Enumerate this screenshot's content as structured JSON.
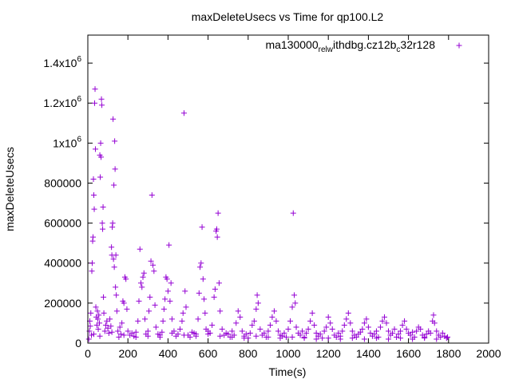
{
  "chart_data": {
    "type": "scatter",
    "title": "maxDeleteUsecs vs Time for qp100.L2",
    "xlabel": "Time(s)",
    "ylabel": "maxDeleteUsecs",
    "xlim": [
      0,
      2000
    ],
    "ylim": [
      0,
      1540000
    ],
    "x_ticks": [
      0,
      200,
      400,
      600,
      800,
      1000,
      1200,
      1400,
      1600,
      1800,
      2000
    ],
    "x_tick_labels": [
      "0",
      "200",
      "400",
      "600",
      "800",
      "1000",
      "1200",
      "1400",
      "1600",
      "1800",
      "2000"
    ],
    "y_ticks": [
      {
        "value": 0,
        "base": "0",
        "sup": ""
      },
      {
        "value": 200000,
        "base": "200000",
        "sup": ""
      },
      {
        "value": 400000,
        "base": "400000",
        "sup": ""
      },
      {
        "value": 600000,
        "base": "600000",
        "sup": ""
      },
      {
        "value": 800000,
        "base": "800000",
        "sup": ""
      },
      {
        "value": 1000000,
        "base": "1x10",
        "sup": "6"
      },
      {
        "value": 1200000,
        "base": "1.2x10",
        "sup": "6"
      },
      {
        "value": 1400000,
        "base": "1.4x10",
        "sup": "6"
      }
    ],
    "grid": false,
    "legend_position": "top-right",
    "series": [
      {
        "name": "ma130000_rel_withdbg.cz12b_c32r128",
        "legend_parts": [
          {
            "t": "ma130000",
            "s": ""
          },
          {
            "t": "rel",
            "s": "sub"
          },
          {
            "t": "w",
            "s": "sub"
          },
          {
            "t": "ithdbg.cz12b",
            "s": ""
          },
          {
            "t": "c",
            "s": "sub"
          },
          {
            "t": "32r128",
            "s": ""
          }
        ],
        "color": "#9400d3",
        "points": [
          [
            5,
            20000
          ],
          [
            8,
            60000
          ],
          [
            10,
            110000
          ],
          [
            12,
            85000
          ],
          [
            15,
            150000
          ],
          [
            18,
            40000
          ],
          [
            20,
            360000
          ],
          [
            22,
            400000
          ],
          [
            24,
            510000
          ],
          [
            26,
            530000
          ],
          [
            28,
            820000
          ],
          [
            30,
            740000
          ],
          [
            32,
            670000
          ],
          [
            34,
            1200000
          ],
          [
            36,
            1270000
          ],
          [
            38,
            970000
          ],
          [
            40,
            180000
          ],
          [
            42,
            130000
          ],
          [
            45,
            90000
          ],
          [
            48,
            160000
          ],
          [
            50,
            120000
          ],
          [
            52,
            70000
          ],
          [
            55,
            140000
          ],
          [
            58,
            100000
          ],
          [
            60,
            940000
          ],
          [
            62,
            830000
          ],
          [
            64,
            1000000
          ],
          [
            66,
            930000
          ],
          [
            68,
            1220000
          ],
          [
            70,
            1190000
          ],
          [
            72,
            600000
          ],
          [
            74,
            570000
          ],
          [
            76,
            680000
          ],
          [
            78,
            230000
          ],
          [
            80,
            150000
          ],
          [
            85,
            60000
          ],
          [
            90,
            90000
          ],
          [
            95,
            110000
          ],
          [
            100,
            75000
          ],
          [
            105,
            50000
          ],
          [
            110,
            120000
          ],
          [
            115,
            85000
          ],
          [
            118,
            480000
          ],
          [
            120,
            440000
          ],
          [
            122,
            580000
          ],
          [
            124,
            600000
          ],
          [
            126,
            1120000
          ],
          [
            128,
            420000
          ],
          [
            130,
            790000
          ],
          [
            132,
            380000
          ],
          [
            134,
            1010000
          ],
          [
            136,
            870000
          ],
          [
            138,
            280000
          ],
          [
            140,
            440000
          ],
          [
            142,
            240000
          ],
          [
            145,
            160000
          ],
          [
            150,
            60000
          ],
          [
            155,
            30000
          ],
          [
            160,
            80000
          ],
          [
            165,
            45000
          ],
          [
            170,
            100000
          ],
          [
            175,
            210000
          ],
          [
            180,
            200000
          ],
          [
            185,
            330000
          ],
          [
            190,
            320000
          ],
          [
            195,
            170000
          ],
          [
            200,
            60000
          ],
          [
            210,
            40000
          ],
          [
            220,
            50000
          ],
          [
            230,
            35000
          ],
          [
            240,
            55000
          ],
          [
            250,
            110000
          ],
          [
            255,
            210000
          ],
          [
            260,
            470000
          ],
          [
            265,
            300000
          ],
          [
            270,
            280000
          ],
          [
            275,
            330000
          ],
          [
            280,
            350000
          ],
          [
            285,
            120000
          ],
          [
            290,
            45000
          ],
          [
            300,
            60000
          ],
          [
            305,
            160000
          ],
          [
            310,
            230000
          ],
          [
            315,
            410000
          ],
          [
            320,
            740000
          ],
          [
            325,
            390000
          ],
          [
            330,
            360000
          ],
          [
            335,
            190000
          ],
          [
            340,
            80000
          ],
          [
            350,
            45000
          ],
          [
            360,
            40000
          ],
          [
            370,
            55000
          ],
          [
            375,
            110000
          ],
          [
            380,
            170000
          ],
          [
            385,
            220000
          ],
          [
            390,
            330000
          ],
          [
            395,
            320000
          ],
          [
            400,
            260000
          ],
          [
            405,
            490000
          ],
          [
            410,
            210000
          ],
          [
            415,
            300000
          ],
          [
            420,
            120000
          ],
          [
            430,
            60000
          ],
          [
            440,
            35000
          ],
          [
            450,
            45000
          ],
          [
            460,
            70000
          ],
          [
            470,
            110000
          ],
          [
            475,
            150000
          ],
          [
            480,
            1150000
          ],
          [
            485,
            260000
          ],
          [
            490,
            180000
          ],
          [
            500,
            40000
          ],
          [
            510,
            30000
          ],
          [
            520,
            55000
          ],
          [
            530,
            50000
          ],
          [
            540,
            45000
          ],
          [
            550,
            120000
          ],
          [
            555,
            250000
          ],
          [
            560,
            380000
          ],
          [
            565,
            400000
          ],
          [
            570,
            580000
          ],
          [
            575,
            320000
          ],
          [
            580,
            220000
          ],
          [
            585,
            150000
          ],
          [
            590,
            70000
          ],
          [
            600,
            60000
          ],
          [
            610,
            50000
          ],
          [
            620,
            90000
          ],
          [
            630,
            230000
          ],
          [
            635,
            270000
          ],
          [
            640,
            560000
          ],
          [
            643,
            570000
          ],
          [
            646,
            530000
          ],
          [
            650,
            650000
          ],
          [
            655,
            300000
          ],
          [
            660,
            160000
          ],
          [
            670,
            70000
          ],
          [
            680,
            40000
          ],
          [
            690,
            50000
          ],
          [
            700,
            45000
          ],
          [
            710,
            30000
          ],
          [
            720,
            60000
          ],
          [
            730,
            40000
          ],
          [
            740,
            100000
          ],
          [
            750,
            160000
          ],
          [
            760,
            130000
          ],
          [
            770,
            60000
          ],
          [
            780,
            35000
          ],
          [
            790,
            45000
          ],
          [
            800,
            25000
          ],
          [
            810,
            50000
          ],
          [
            820,
            90000
          ],
          [
            830,
            110000
          ],
          [
            840,
            170000
          ],
          [
            845,
            240000
          ],
          [
            850,
            200000
          ],
          [
            860,
            70000
          ],
          [
            870,
            40000
          ],
          [
            880,
            50000
          ],
          [
            890,
            30000
          ],
          [
            900,
            60000
          ],
          [
            910,
            90000
          ],
          [
            920,
            130000
          ],
          [
            930,
            160000
          ],
          [
            940,
            110000
          ],
          [
            950,
            60000
          ],
          [
            960,
            40000
          ],
          [
            970,
            35000
          ],
          [
            980,
            50000
          ],
          [
            990,
            30000
          ],
          [
            1000,
            70000
          ],
          [
            1010,
            110000
          ],
          [
            1020,
            180000
          ],
          [
            1025,
            650000
          ],
          [
            1030,
            240000
          ],
          [
            1035,
            200000
          ],
          [
            1040,
            80000
          ],
          [
            1050,
            50000
          ],
          [
            1060,
            40000
          ],
          [
            1070,
            60000
          ],
          [
            1080,
            30000
          ],
          [
            1090,
            50000
          ],
          [
            1100,
            70000
          ],
          [
            1110,
            110000
          ],
          [
            1120,
            150000
          ],
          [
            1130,
            90000
          ],
          [
            1140,
            50000
          ],
          [
            1150,
            35000
          ],
          [
            1160,
            45000
          ],
          [
            1170,
            25000
          ],
          [
            1180,
            60000
          ],
          [
            1190,
            80000
          ],
          [
            1200,
            130000
          ],
          [
            1210,
            100000
          ],
          [
            1220,
            70000
          ],
          [
            1230,
            40000
          ],
          [
            1240,
            30000
          ],
          [
            1250,
            50000
          ],
          [
            1260,
            35000
          ],
          [
            1270,
            60000
          ],
          [
            1280,
            90000
          ],
          [
            1290,
            120000
          ],
          [
            1300,
            150000
          ],
          [
            1310,
            100000
          ],
          [
            1320,
            60000
          ],
          [
            1330,
            40000
          ],
          [
            1340,
            30000
          ],
          [
            1350,
            45000
          ],
          [
            1360,
            55000
          ],
          [
            1370,
            70000
          ],
          [
            1380,
            100000
          ],
          [
            1390,
            120000
          ],
          [
            1400,
            80000
          ],
          [
            1410,
            50000
          ],
          [
            1420,
            35000
          ],
          [
            1430,
            45000
          ],
          [
            1440,
            60000
          ],
          [
            1450,
            30000
          ],
          [
            1460,
            80000
          ],
          [
            1470,
            110000
          ],
          [
            1480,
            130000
          ],
          [
            1490,
            100000
          ],
          [
            1500,
            60000
          ],
          [
            1510,
            40000
          ],
          [
            1520,
            50000
          ],
          [
            1530,
            70000
          ],
          [
            1540,
            30000
          ],
          [
            1550,
            45000
          ],
          [
            1560,
            60000
          ],
          [
            1570,
            90000
          ],
          [
            1580,
            110000
          ],
          [
            1590,
            70000
          ],
          [
            1600,
            50000
          ],
          [
            1610,
            40000
          ],
          [
            1620,
            55000
          ],
          [
            1630,
            30000
          ],
          [
            1640,
            60000
          ],
          [
            1650,
            80000
          ],
          [
            1660,
            70000
          ],
          [
            1670,
            40000
          ],
          [
            1680,
            30000
          ],
          [
            1690,
            45000
          ],
          [
            1700,
            60000
          ],
          [
            1710,
            50000
          ],
          [
            1720,
            110000
          ],
          [
            1725,
            140000
          ],
          [
            1730,
            100000
          ],
          [
            1740,
            60000
          ],
          [
            1750,
            40000
          ],
          [
            1760,
            30000
          ],
          [
            1770,
            50000
          ],
          [
            1780,
            35000
          ],
          [
            1790,
            25000
          ],
          [
            1795,
            30000
          ],
          [
            30,
            45000
          ],
          [
            60,
            35000
          ],
          [
            120,
            55000
          ],
          [
            180,
            40000
          ],
          [
            240,
            30000
          ],
          [
            300,
            35000
          ],
          [
            360,
            30000
          ],
          [
            420,
            50000
          ],
          [
            480,
            40000
          ],
          [
            540,
            35000
          ],
          [
            600,
            45000
          ],
          [
            660,
            35000
          ],
          [
            720,
            30000
          ],
          [
            780,
            25000
          ],
          [
            840,
            35000
          ],
          [
            900,
            30000
          ],
          [
            960,
            25000
          ],
          [
            1020,
            30000
          ],
          [
            1080,
            25000
          ],
          [
            1140,
            20000
          ],
          [
            1200,
            25000
          ],
          [
            1260,
            20000
          ],
          [
            1320,
            25000
          ],
          [
            1380,
            20000
          ],
          [
            1440,
            25000
          ],
          [
            1500,
            20000
          ],
          [
            1560,
            25000
          ],
          [
            1620,
            20000
          ],
          [
            1680,
            25000
          ],
          [
            1740,
            20000
          ]
        ]
      }
    ]
  }
}
